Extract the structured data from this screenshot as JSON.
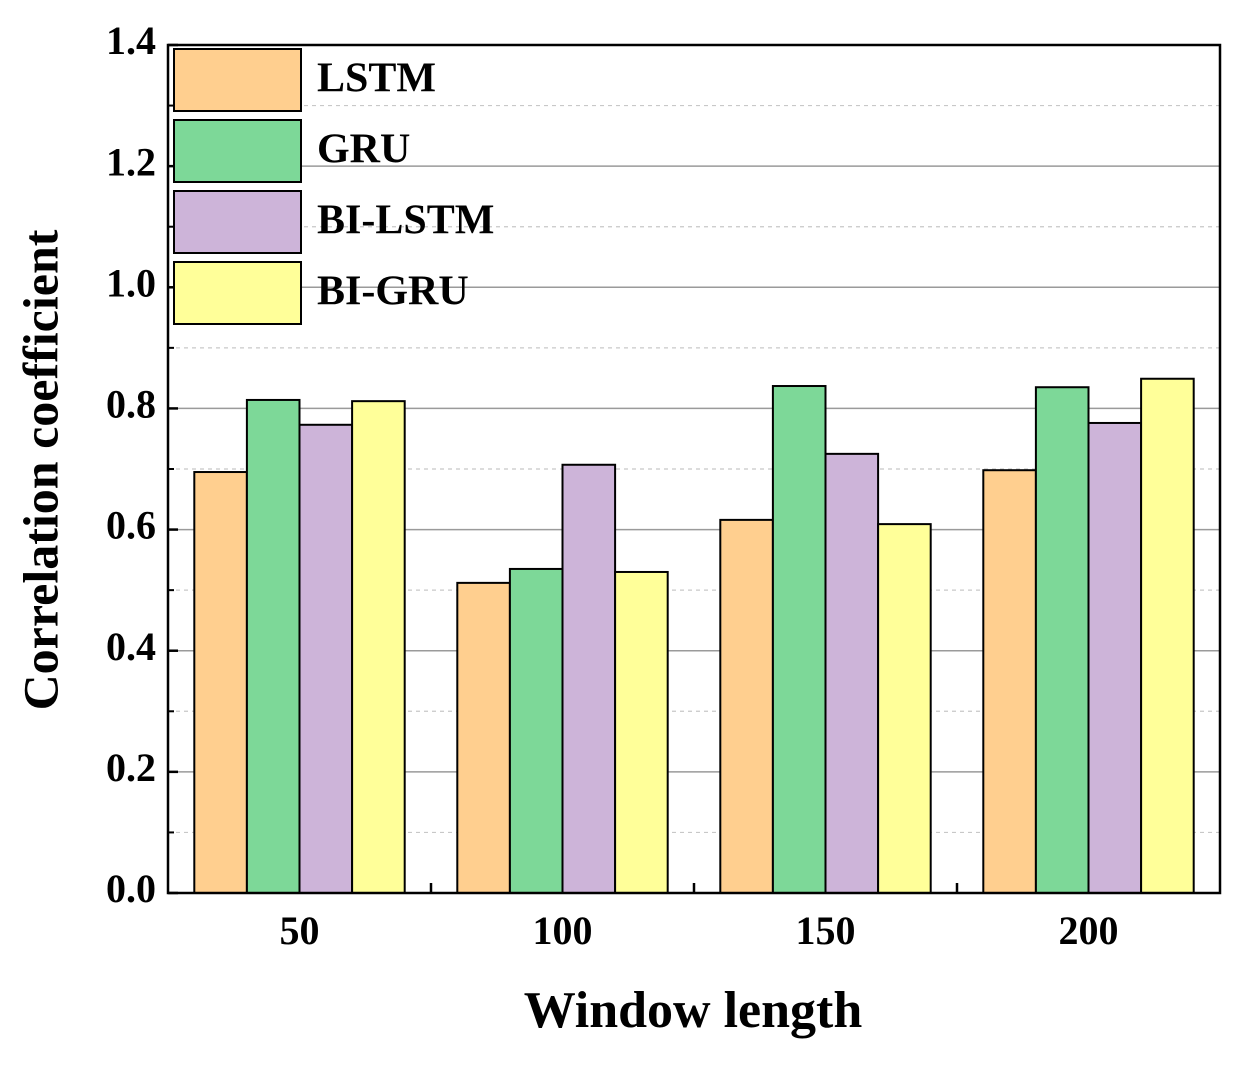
{
  "chart_data": {
    "type": "bar",
    "x_label": "Window length",
    "y_label": "Correlation coefficient",
    "categories": [
      "50",
      "100",
      "150",
      "200"
    ],
    "series": [
      {
        "name": "LSTM",
        "color": "#FFCF8F",
        "values": [
          0.695,
          0.512,
          0.616,
          0.698
        ]
      },
      {
        "name": "GRU",
        "color": "#7DD898",
        "values": [
          0.814,
          0.535,
          0.837,
          0.835
        ]
      },
      {
        "name": "BI-LSTM",
        "color": "#CDB4D9",
        "values": [
          0.773,
          0.707,
          0.725,
          0.776
        ]
      },
      {
        "name": "BI-GRU",
        "color": "#FFFF99",
        "values": [
          0.812,
          0.53,
          0.609,
          0.849
        ]
      }
    ],
    "ylim": [
      0,
      1.4
    ],
    "yticks": [
      {
        "value": 0,
        "label": "0.0"
      },
      0.2,
      0.4,
      0.6,
      0.8,
      {
        "value": 1,
        "label": "1.0"
      },
      1.2,
      1.4
    ],
    "grid": true,
    "legend": "upper left"
  }
}
